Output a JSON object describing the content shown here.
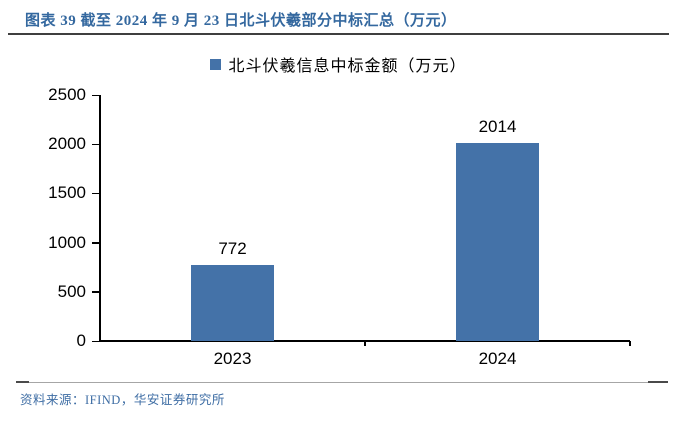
{
  "figure": {
    "title": "图表 39 截至 2024 年 9 月 23 日北斗伏羲部分中标汇总（万元）",
    "source": "资料来源：IFIND，华安证券研究所"
  },
  "legend": {
    "label": "北斗伏羲信息中标金额（万元）"
  },
  "colors": {
    "bar": "#4472A8",
    "title_text": "#34689F",
    "source_text": "#3E6DA4",
    "title_rule": "#3F3F3F",
    "footer_rule": "#A6A6A6",
    "footer_rule_cap": "#4A4A4A",
    "axis": "#000000",
    "label_text": "#000000"
  },
  "chart_data": {
    "type": "bar",
    "title": "北斗伏羲信息中标金额（万元）",
    "categories": [
      "2023",
      "2024"
    ],
    "values": [
      772,
      2014
    ],
    "series": [
      {
        "name": "北斗伏羲信息中标金额（万元）",
        "values": [
          772,
          2014
        ]
      }
    ],
    "xlabel": "",
    "ylabel": "",
    "ylim": [
      0,
      2500
    ],
    "yticks": [
      0,
      500,
      1000,
      1500,
      2000,
      2500
    ],
    "grid": false,
    "legend_position": "top",
    "data_labels": true
  }
}
